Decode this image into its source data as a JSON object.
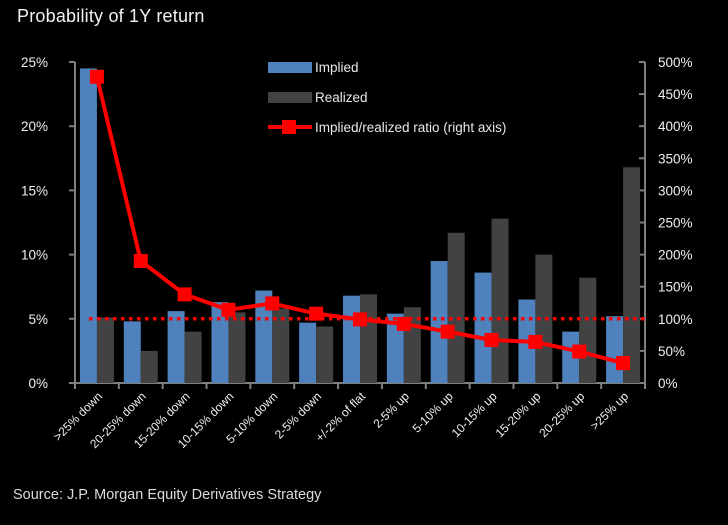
{
  "title": "Probability of 1Y return",
  "source": "Source: J.P. Morgan Equity Derivatives Strategy",
  "colors": {
    "background": "#000000",
    "implied_bar": "#4f81bd",
    "realized_bar": "#424242",
    "ratio_line": "#ff0000",
    "axis": "#7f7f7f",
    "text": "#f0f0f0"
  },
  "legend": [
    {
      "label": "Implied",
      "swatch": "blue-bar-swatch"
    },
    {
      "label": "Realized",
      "swatch": "gray-bar-swatch"
    },
    {
      "label": "Implied/realized ratio (right axis)",
      "swatch": "red-line-marker-swatch"
    }
  ],
  "chart_data": {
    "type": "bar",
    "title": "Probability of 1Y return",
    "categories": [
      ">25% down",
      "20-25% down",
      "15-20% down",
      "10-15% down",
      "5-10% down",
      "2-5% down",
      "+/-2% of flat",
      "2-5% up",
      "5-10% up",
      "10-15% up",
      "15-20% up",
      "20-25% up",
      ">25% up"
    ],
    "series": [
      {
        "name": "Implied",
        "type": "bar",
        "axis": "left",
        "color": "#4f81bd",
        "values": [
          24.5,
          4.8,
          5.6,
          6.3,
          7.2,
          4.7,
          6.8,
          5.4,
          9.5,
          8.6,
          6.5,
          4.0,
          5.2
        ]
      },
      {
        "name": "Realized",
        "type": "bar",
        "axis": "left",
        "color": "#424242",
        "values": [
          5.1,
          2.5,
          4.0,
          5.5,
          5.8,
          4.4,
          6.9,
          5.9,
          11.7,
          12.8,
          10.0,
          8.2,
          16.8
        ]
      },
      {
        "name": "Implied/realized ratio (right axis)",
        "type": "line",
        "axis": "right",
        "color": "#ff0000",
        "marker": "square",
        "values": [
          477,
          190,
          138,
          114,
          124,
          108,
          99,
          92,
          80,
          67,
          64,
          49,
          31
        ]
      }
    ],
    "left_axis": {
      "min": 0,
      "max": 25,
      "step": 5,
      "ticks": [
        "0%",
        "5%",
        "10%",
        "15%",
        "20%",
        "25%"
      ]
    },
    "right_axis": {
      "min": 0,
      "max": 500,
      "step": 50,
      "ticks": [
        "0%",
        "50%",
        "100%",
        "150%",
        "200%",
        "250%",
        "300%",
        "350%",
        "400%",
        "450%",
        "500%"
      ]
    },
    "reference_line": {
      "axis": "right",
      "value": 100,
      "style": "dotted",
      "color": "#ff0000"
    },
    "grid": false,
    "legend_position": "top-center",
    "x_label_rotation": -45
  }
}
